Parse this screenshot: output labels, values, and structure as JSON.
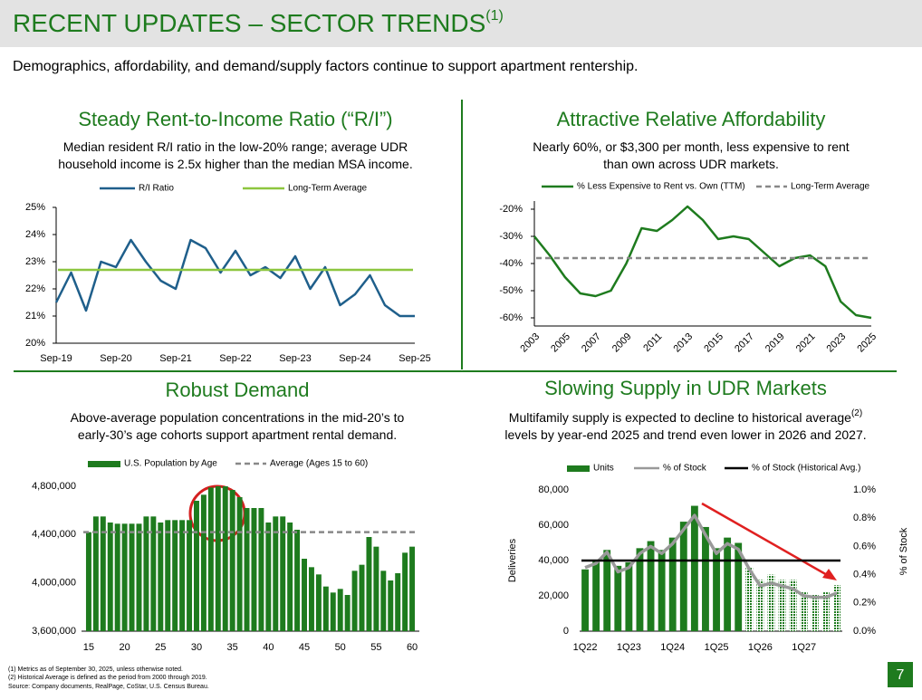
{
  "header": {
    "title": "RECENT UPDATES – SECTOR TRENDS",
    "title_note": "(1)",
    "subtitle": "Demographics, affordability, and demand/supply factors continue to support apartment rentership."
  },
  "footnotes": [
    "(1)    Metrics as of September 30, 2025, unless otherwise noted.",
    "(2)    Historical Average is defined as the period from 2000 through 2019.",
    "Source: Company documents, RealPage, CoStar, U.S. Census Bureau."
  ],
  "page_number": "7",
  "chart_data": [
    {
      "type": "line",
      "title": "Steady Rent-to-Income Ratio (“R/I”)",
      "subtitle": [
        "Median resident R/I ratio in the low-20% range; average UDR",
        "household income is 2.5x higher than the median MSA income."
      ],
      "categories": [
        "Sep-19",
        null,
        null,
        null,
        "Sep-20",
        null,
        null,
        null,
        "Sep-21",
        null,
        null,
        null,
        "Sep-22",
        null,
        null,
        null,
        "Sep-23",
        null,
        null,
        null,
        "Sep-24",
        null,
        null,
        null,
        "Sep-25"
      ],
      "series": [
        {
          "name": "R/I Ratio",
          "color": "#1f5f8b",
          "style": "line",
          "values": [
            21.5,
            22.6,
            21.2,
            23.0,
            22.8,
            23.8,
            23.0,
            22.3,
            22.0,
            23.8,
            23.5,
            22.6,
            23.4,
            22.5,
            22.8,
            22.4,
            23.2,
            22.0,
            22.8,
            21.4,
            21.8,
            22.5,
            21.4,
            21.0,
            21.0
          ]
        },
        {
          "name": "Long-Term Average",
          "color": "#8dc63f",
          "style": "line",
          "value": 22.7
        }
      ],
      "ylim": [
        20,
        25
      ],
      "yticks": [
        {
          "value": 20,
          "label": "20%"
        },
        {
          "value": 21,
          "label": "21%"
        },
        {
          "value": 22,
          "label": "22%"
        },
        {
          "value": 23,
          "label": "23%"
        },
        {
          "value": 24,
          "label": "24%"
        },
        {
          "value": 25,
          "label": "25%"
        }
      ]
    },
    {
      "type": "line",
      "title": "Attractive Relative Affordability",
      "subtitle": [
        "Nearly 60%, or $3,300 per month, less expensive to rent",
        "than own across UDR markets."
      ],
      "categories": [
        "2003",
        null,
        "2005",
        null,
        "2007",
        null,
        "2009",
        null,
        "2011",
        null,
        "2013",
        null,
        "2015",
        null,
        "2017",
        null,
        "2019",
        null,
        "2021",
        null,
        "2023",
        null,
        "2025"
      ],
      "series": [
        {
          "name": "% Less Expensive to Rent vs. Own (TTM)",
          "color": "#1e7b1e",
          "style": "line",
          "values": [
            -30,
            -37,
            -45,
            -51,
            -52,
            -50,
            -40,
            -27,
            -28,
            -24,
            -19,
            -24,
            -31,
            -30,
            -31,
            -36,
            -41,
            -38,
            -37,
            -41,
            -54,
            -59,
            -60
          ]
        },
        {
          "name": "Long-Term Average",
          "color": "#888888",
          "style": "dashed",
          "value": -38
        }
      ],
      "ylim": [
        -63,
        -17
      ],
      "yticks": [
        {
          "value": -20,
          "label": "-20%"
        },
        {
          "value": -30,
          "label": "-30%"
        },
        {
          "value": -40,
          "label": "-40%"
        },
        {
          "value": -50,
          "label": "-50%"
        },
        {
          "value": -60,
          "label": "-60%"
        }
      ]
    },
    {
      "type": "bar",
      "title": "Robust Demand",
      "subtitle": [
        "Above-average population concentrations in the mid-20’s to",
        "early-30’s age cohorts support apartment rental demand."
      ],
      "x": [
        15,
        16,
        17,
        18,
        19,
        20,
        21,
        22,
        23,
        24,
        25,
        26,
        27,
        28,
        29,
        30,
        31,
        32,
        33,
        34,
        35,
        36,
        37,
        38,
        39,
        40,
        41,
        42,
        43,
        44,
        45,
        46,
        47,
        48,
        49,
        50,
        51,
        52,
        53,
        54,
        55,
        56,
        57,
        58,
        59,
        60
      ],
      "series": [
        {
          "name": "U.S. Population by Age",
          "color": "#1e7b1e",
          "style": "bar",
          "values": [
            4420000,
            4550000,
            4550000,
            4500000,
            4490000,
            4490000,
            4490000,
            4490000,
            4550000,
            4550000,
            4500000,
            4520000,
            4520000,
            4520000,
            4520000,
            4680000,
            4730000,
            4790000,
            4800000,
            4800000,
            4770000,
            4710000,
            4620000,
            4620000,
            4620000,
            4500000,
            4550000,
            4550000,
            4500000,
            4440000,
            4200000,
            4130000,
            4070000,
            3970000,
            3920000,
            3950000,
            3900000,
            4100000,
            4150000,
            4380000,
            4300000,
            4100000,
            4020000,
            4080000,
            4250000,
            4300000
          ]
        },
        {
          "name": "Average (Ages 15 to 60)",
          "color": "#888888",
          "style": "dashed",
          "value": 4420000
        }
      ],
      "xlim": [
        14,
        61
      ],
      "xticks": [
        15,
        20,
        25,
        30,
        35,
        40,
        45,
        50,
        55,
        60
      ],
      "ylim": [
        3600000,
        4800000
      ],
      "yticks": [
        {
          "value": 3600000,
          "label": "3,600,000"
        },
        {
          "value": 4000000,
          "label": "4,000,000"
        },
        {
          "value": 4400000,
          "label": "4,400,000"
        },
        {
          "value": 4800000,
          "label": "4,800,000"
        }
      ]
    },
    {
      "type": "combo",
      "title": "Slowing Supply in UDR Markets",
      "subtitle": [
        "Multifamily supply is expected to decline to historical average",
        "levels by year-end 2025 and trend even lower in 2026 and 2027."
      ],
      "subtitle_note": "(2)",
      "ylabel": "Deliveries",
      "y2label": "% of Stock",
      "categories": [
        "1Q22",
        null,
        null,
        null,
        "1Q23",
        null,
        null,
        null,
        "1Q24",
        null,
        null,
        null,
        "1Q25",
        null,
        null,
        null,
        "1Q26",
        null,
        null,
        null,
        "1Q27",
        null,
        null,
        null
      ],
      "hatched_from_index": 15,
      "series": [
        {
          "name": "Units",
          "color": "#1e7b1e",
          "style": "bar",
          "values": [
            35000,
            40000,
            46000,
            37000,
            39000,
            47000,
            51000,
            46000,
            53000,
            62000,
            71000,
            59000,
            47000,
            53000,
            50000,
            36000,
            29000,
            32000,
            29000,
            29000,
            22000,
            21000,
            22000,
            26000
          ]
        },
        {
          "name": "% of Stock",
          "color": "#999999",
          "style": "line",
          "axis": "y2",
          "values": [
            0.45,
            0.48,
            0.56,
            0.42,
            0.45,
            0.55,
            0.6,
            0.55,
            0.62,
            0.72,
            0.82,
            0.68,
            0.55,
            0.62,
            0.58,
            0.44,
            0.32,
            0.34,
            0.32,
            0.3,
            0.25,
            0.24,
            0.24,
            0.27
          ]
        },
        {
          "name": "% of Stock (Historical Avg.)",
          "color": "#000000",
          "style": "line",
          "axis": "y2",
          "value": 0.5
        }
      ],
      "ylim": [
        0,
        80000
      ],
      "yticks": [
        0,
        {
          "value": 20000,
          "label": "20,000"
        },
        {
          "value": 40000,
          "label": "40,000"
        },
        {
          "value": 60000,
          "label": "60,000"
        },
        {
          "value": 80000,
          "label": "80,000"
        }
      ],
      "y2lim": [
        0,
        1
      ],
      "y2ticks": [
        {
          "value": 0,
          "label": "0.0%"
        },
        {
          "value": 0.2,
          "label": "0.2%"
        },
        {
          "value": 0.4,
          "label": "0.4%"
        },
        {
          "value": 0.6,
          "label": "0.6%"
        },
        {
          "value": 0.8,
          "label": "0.8%"
        },
        {
          "value": 1,
          "label": "1.0%"
        }
      ]
    }
  ]
}
